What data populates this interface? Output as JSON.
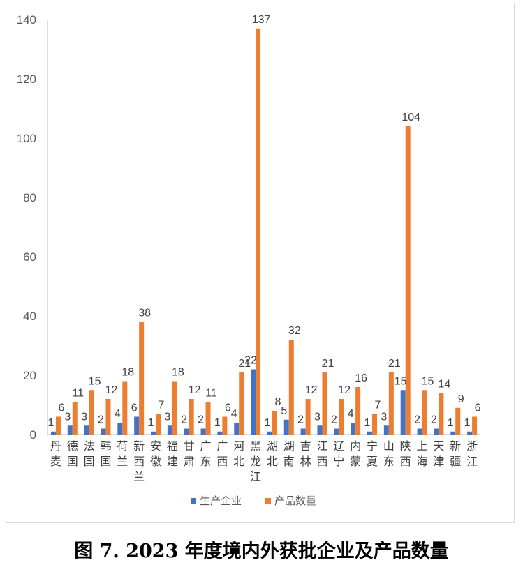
{
  "caption": "图 7. 2023 年度境内外获批企业及产品数量",
  "chart_data": {
    "type": "bar",
    "title": "",
    "xlabel": "",
    "ylabel": "",
    "ylim": [
      0,
      140
    ],
    "yticks": [
      0,
      20,
      40,
      60,
      80,
      100,
      120,
      140
    ],
    "grid": false,
    "legend_position": "bottom",
    "categories": [
      [
        "丹",
        "麦"
      ],
      [
        "德",
        "国"
      ],
      [
        "法",
        "国"
      ],
      [
        "韩",
        "国"
      ],
      [
        "荷",
        "兰"
      ],
      [
        "新",
        "西",
        "兰"
      ],
      [
        "安",
        "徽"
      ],
      [
        "福",
        "建"
      ],
      [
        "甘",
        "肃"
      ],
      [
        "广",
        "东"
      ],
      [
        "广",
        "西"
      ],
      [
        "河",
        "北"
      ],
      [
        "黑",
        "龙",
        "江"
      ],
      [
        "湖",
        "北"
      ],
      [
        "湖",
        "南"
      ],
      [
        "吉",
        "林"
      ],
      [
        "江",
        "西"
      ],
      [
        "辽",
        "宁"
      ],
      [
        "内",
        "蒙"
      ],
      [
        "宁",
        "夏"
      ],
      [
        "山",
        "东"
      ],
      [
        "陕",
        "西"
      ],
      [
        "上",
        "海"
      ],
      [
        "天",
        "津"
      ],
      [
        "新",
        "疆"
      ],
      [
        "浙",
        "江"
      ]
    ],
    "series": [
      {
        "name": "生产企业",
        "color": "#4472c4",
        "values": [
          1,
          3,
          3,
          2,
          4,
          6,
          1,
          3,
          2,
          2,
          1,
          4,
          22,
          1,
          5,
          2,
          3,
          2,
          4,
          1,
          3,
          15,
          2,
          2,
          1,
          1
        ]
      },
      {
        "name": "产品数量",
        "color": "#ed7d31",
        "values": [
          6,
          11,
          15,
          12,
          18,
          38,
          7,
          18,
          12,
          11,
          6,
          21,
          137,
          8,
          32,
          12,
          21,
          12,
          16,
          7,
          21,
          104,
          15,
          14,
          9,
          6
        ]
      }
    ]
  }
}
